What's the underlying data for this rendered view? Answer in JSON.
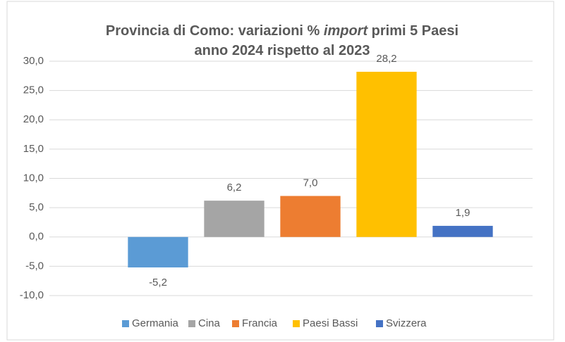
{
  "chart_data": {
    "type": "bar",
    "title": [
      [
        "Provincia di Como: variazioni % ",
        "import",
        " primi 5 Paesi"
      ],
      [
        "anno 2024 rispetto al 2023"
      ]
    ],
    "series": [
      {
        "name": "Germania",
        "color": "#5b9bd5",
        "values": [
          -5.2
        ],
        "value_labels": [
          "-5,2"
        ]
      },
      {
        "name": "Cina",
        "color": "#a5a5a5",
        "values": [
          6.2
        ],
        "value_labels": [
          "6,2"
        ]
      },
      {
        "name": "Francia",
        "color": "#ed7d31",
        "values": [
          7.0
        ],
        "value_labels": [
          "7,0"
        ]
      },
      {
        "name": "Paesi Bassi",
        "color": "#ffc000",
        "values": [
          28.2
        ],
        "value_labels": [
          "28,2"
        ]
      },
      {
        "name": "Svizzera",
        "color": "#4472c4",
        "values": [
          1.9
        ],
        "value_labels": [
          "1,9"
        ]
      }
    ],
    "ylim": [
      -10,
      30
    ],
    "yticks": [
      {
        "value": -10,
        "label": "-10,0"
      },
      {
        "value": -5,
        "label": "-5,0"
      },
      {
        "value": 0,
        "label": "0,0"
      },
      {
        "value": 5,
        "label": "5,0"
      },
      {
        "value": 10,
        "label": "10,0"
      },
      {
        "value": 15,
        "label": "15,0"
      },
      {
        "value": 20,
        "label": "20,0"
      },
      {
        "value": 25,
        "label": "25,0"
      },
      {
        "value": 30,
        "label": "30,0"
      }
    ],
    "grid": true,
    "legend": "bottom"
  }
}
